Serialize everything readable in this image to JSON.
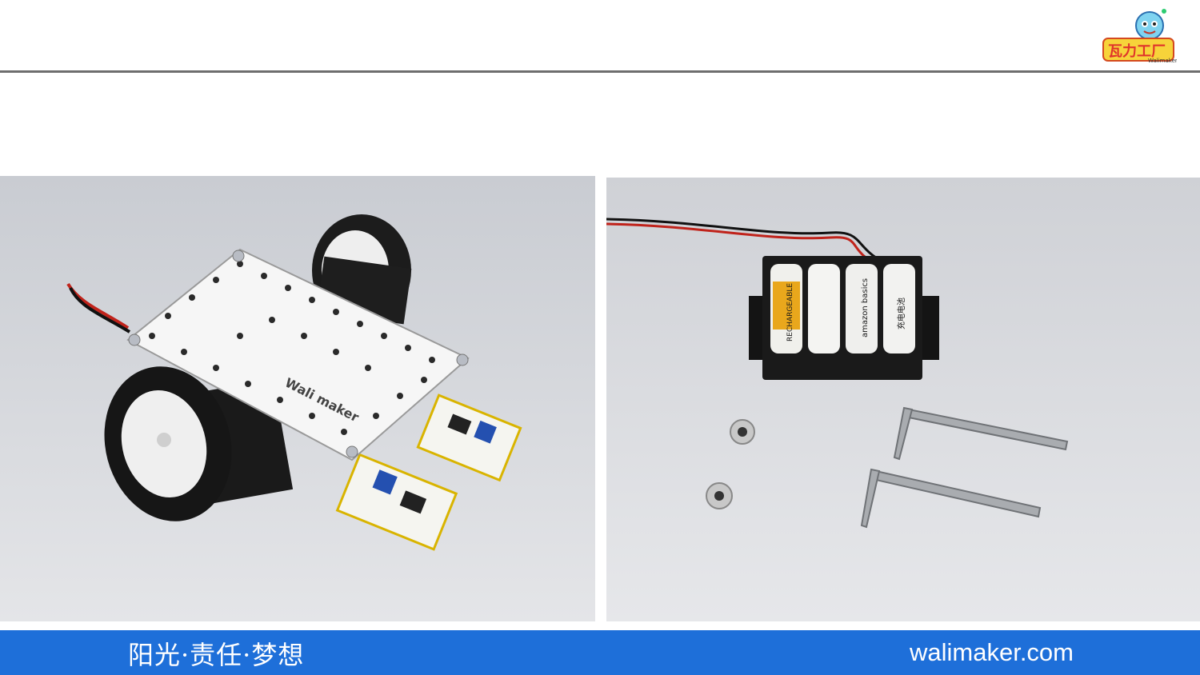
{
  "header": {
    "logo_icon": "walimaker-mascot-logo",
    "logo_text": "瓦力工厂",
    "logo_subtext": "Walimaker"
  },
  "images": {
    "left": {
      "plate_text": "Wali maker"
    },
    "right": {
      "battery_labels": [
        "RECHARGEABLE",
        "",
        "amazon basics",
        "充电电池"
      ]
    }
  },
  "footer": {
    "slogan": "阳光·责任·梦想",
    "website": "walimaker.com",
    "background_color": "#1e6fd9"
  }
}
